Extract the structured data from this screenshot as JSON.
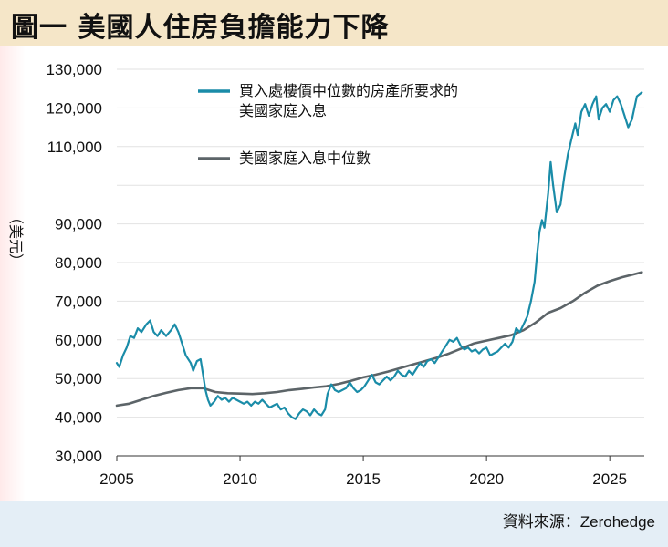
{
  "title": "圖一 美國人住房負擔能力下降",
  "source": "資料來源：Zerohedge",
  "colors": {
    "header_bg": "#f5e6c8",
    "footer_bg": "#e4eef6",
    "required_income": "#1a8ca8",
    "median_income": "#5c6468",
    "grid": "#e2e2e2"
  },
  "chart_data": {
    "type": "line",
    "ylabel": "（美元）",
    "ylim": [
      30000,
      130000
    ],
    "xlim": [
      2005,
      2026.4
    ],
    "yticks": [
      "30,000",
      "40,000",
      "50,000",
      "60,000",
      "70,000",
      "80,000",
      "90,000",
      "110,000",
      "120,000",
      "130,000"
    ],
    "ytick_values": [
      30000,
      40000,
      50000,
      60000,
      70000,
      80000,
      90000,
      110000,
      120000,
      130000
    ],
    "xticks": [
      "2005",
      "2010",
      "2015",
      "2020",
      "2025"
    ],
    "xtick_values": [
      2005,
      2010,
      2015,
      2020,
      2025
    ],
    "grid": true,
    "legend_position": "top-center",
    "series": [
      {
        "name": "買入處樓價中位數的房產所要求的美國家庭入息",
        "legend_lines": [
          "買入處樓價中位數的房產所要求的",
          "美國家庭入息"
        ],
        "color": "#1a8ca8",
        "points": [
          [
            2005.0,
            54000
          ],
          [
            2005.1,
            53000
          ],
          [
            2005.25,
            56000
          ],
          [
            2005.4,
            58000
          ],
          [
            2005.55,
            61000
          ],
          [
            2005.7,
            60500
          ],
          [
            2005.85,
            63000
          ],
          [
            2006.0,
            62000
          ],
          [
            2006.2,
            64000
          ],
          [
            2006.35,
            65000
          ],
          [
            2006.5,
            62000
          ],
          [
            2006.65,
            61000
          ],
          [
            2006.8,
            62500
          ],
          [
            2007.0,
            61000
          ],
          [
            2007.2,
            62500
          ],
          [
            2007.35,
            64000
          ],
          [
            2007.5,
            62000
          ],
          [
            2007.65,
            59000
          ],
          [
            2007.8,
            56000
          ],
          [
            2008.0,
            54000
          ],
          [
            2008.1,
            52000
          ],
          [
            2008.25,
            54500
          ],
          [
            2008.4,
            55000
          ],
          [
            2008.5,
            51000
          ],
          [
            2008.6,
            47000
          ],
          [
            2008.7,
            44500
          ],
          [
            2008.8,
            43000
          ],
          [
            2008.95,
            44000
          ],
          [
            2009.1,
            45500
          ],
          [
            2009.25,
            44500
          ],
          [
            2009.4,
            45000
          ],
          [
            2009.55,
            44000
          ],
          [
            2009.7,
            45000
          ],
          [
            2009.85,
            44500
          ],
          [
            2010.0,
            44000
          ],
          [
            2010.15,
            43500
          ],
          [
            2010.3,
            44000
          ],
          [
            2010.45,
            43000
          ],
          [
            2010.6,
            44000
          ],
          [
            2010.75,
            43500
          ],
          [
            2010.9,
            44500
          ],
          [
            2011.05,
            43500
          ],
          [
            2011.2,
            42500
          ],
          [
            2011.35,
            43000
          ],
          [
            2011.5,
            43500
          ],
          [
            2011.65,
            42000
          ],
          [
            2011.8,
            42500
          ],
          [
            2011.95,
            41000
          ],
          [
            2012.1,
            40000
          ],
          [
            2012.25,
            39500
          ],
          [
            2012.4,
            41000
          ],
          [
            2012.55,
            42000
          ],
          [
            2012.7,
            41500
          ],
          [
            2012.85,
            40500
          ],
          [
            2013.0,
            42000
          ],
          [
            2013.15,
            41000
          ],
          [
            2013.3,
            40500
          ],
          [
            2013.45,
            42000
          ],
          [
            2013.55,
            46000
          ],
          [
            2013.7,
            48500
          ],
          [
            2013.85,
            47000
          ],
          [
            2014.0,
            46500
          ],
          [
            2014.15,
            47000
          ],
          [
            2014.3,
            47500
          ],
          [
            2014.45,
            49000
          ],
          [
            2014.6,
            47500
          ],
          [
            2014.75,
            46500
          ],
          [
            2014.9,
            47000
          ],
          [
            2015.05,
            48000
          ],
          [
            2015.2,
            49500
          ],
          [
            2015.35,
            51000
          ],
          [
            2015.5,
            49000
          ],
          [
            2015.65,
            48500
          ],
          [
            2015.8,
            49500
          ],
          [
            2015.95,
            50500
          ],
          [
            2016.1,
            49500
          ],
          [
            2016.25,
            50500
          ],
          [
            2016.4,
            52000
          ],
          [
            2016.55,
            51000
          ],
          [
            2016.7,
            50500
          ],
          [
            2016.85,
            52000
          ],
          [
            2017.0,
            51000
          ],
          [
            2017.15,
            52500
          ],
          [
            2017.3,
            54000
          ],
          [
            2017.45,
            53000
          ],
          [
            2017.6,
            54500
          ],
          [
            2017.75,
            55000
          ],
          [
            2017.9,
            54000
          ],
          [
            2018.05,
            55500
          ],
          [
            2018.2,
            57000
          ],
          [
            2018.35,
            58500
          ],
          [
            2018.5,
            60000
          ],
          [
            2018.65,
            59500
          ],
          [
            2018.8,
            60500
          ],
          [
            2018.95,
            58500
          ],
          [
            2019.1,
            57500
          ],
          [
            2019.25,
            58000
          ],
          [
            2019.4,
            57000
          ],
          [
            2019.55,
            57500
          ],
          [
            2019.7,
            56500
          ],
          [
            2019.85,
            57500
          ],
          [
            2020.0,
            58000
          ],
          [
            2020.15,
            56000
          ],
          [
            2020.3,
            56500
          ],
          [
            2020.45,
            57000
          ],
          [
            2020.6,
            58000
          ],
          [
            2020.75,
            59000
          ],
          [
            2020.9,
            58000
          ],
          [
            2021.05,
            59500
          ],
          [
            2021.2,
            63000
          ],
          [
            2021.35,
            62000
          ],
          [
            2021.5,
            64000
          ],
          [
            2021.65,
            66000
          ],
          [
            2021.8,
            70000
          ],
          [
            2021.95,
            75000
          ],
          [
            2022.05,
            82000
          ],
          [
            2022.15,
            88000
          ],
          [
            2022.25,
            91000
          ],
          [
            2022.35,
            89000
          ],
          [
            2022.5,
            98000
          ],
          [
            2022.6,
            106000
          ],
          [
            2022.7,
            100000
          ],
          [
            2022.85,
            93000
          ],
          [
            2023.0,
            95000
          ],
          [
            2023.15,
            102000
          ],
          [
            2023.3,
            108000
          ],
          [
            2023.45,
            112000
          ],
          [
            2023.6,
            116000
          ],
          [
            2023.7,
            113000
          ],
          [
            2023.85,
            119000
          ],
          [
            2024.0,
            121000
          ],
          [
            2024.15,
            118000
          ],
          [
            2024.3,
            121000
          ],
          [
            2024.45,
            123000
          ],
          [
            2024.55,
            117000
          ],
          [
            2024.7,
            120000
          ],
          [
            2024.85,
            121000
          ],
          [
            2025.0,
            119000
          ],
          [
            2025.15,
            122000
          ],
          [
            2025.3,
            123000
          ],
          [
            2025.45,
            121000
          ],
          [
            2025.6,
            118000
          ],
          [
            2025.75,
            115000
          ],
          [
            2025.9,
            117000
          ],
          [
            2026.1,
            123000
          ],
          [
            2026.3,
            124000
          ]
        ]
      },
      {
        "name": "美國家庭入息中位數",
        "legend_lines": [
          "美國家庭入息中位數"
        ],
        "color": "#5c6468",
        "points": [
          [
            2005.0,
            43000
          ],
          [
            2005.5,
            43500
          ],
          [
            2006.0,
            44500
          ],
          [
            2006.5,
            45500
          ],
          [
            2007.0,
            46300
          ],
          [
            2007.5,
            47000
          ],
          [
            2008.0,
            47500
          ],
          [
            2008.5,
            47500
          ],
          [
            2009.0,
            46500
          ],
          [
            2009.5,
            46200
          ],
          [
            2010.0,
            46100
          ],
          [
            2010.5,
            46000
          ],
          [
            2011.0,
            46200
          ],
          [
            2011.5,
            46500
          ],
          [
            2012.0,
            47000
          ],
          [
            2012.5,
            47300
          ],
          [
            2013.0,
            47700
          ],
          [
            2013.5,
            48000
          ],
          [
            2014.0,
            48600
          ],
          [
            2014.5,
            49400
          ],
          [
            2015.0,
            50300
          ],
          [
            2015.5,
            51000
          ],
          [
            2016.0,
            51800
          ],
          [
            2016.5,
            52700
          ],
          [
            2017.0,
            53600
          ],
          [
            2017.5,
            54500
          ],
          [
            2018.0,
            55400
          ],
          [
            2018.5,
            56500
          ],
          [
            2019.0,
            57800
          ],
          [
            2019.5,
            59100
          ],
          [
            2020.0,
            59800
          ],
          [
            2020.5,
            60500
          ],
          [
            2021.0,
            61200
          ],
          [
            2021.5,
            62500
          ],
          [
            2022.0,
            64500
          ],
          [
            2022.5,
            67000
          ],
          [
            2023.0,
            68200
          ],
          [
            2023.5,
            70000
          ],
          [
            2024.0,
            72200
          ],
          [
            2024.5,
            74000
          ],
          [
            2025.0,
            75200
          ],
          [
            2025.5,
            76200
          ],
          [
            2026.0,
            77000
          ],
          [
            2026.3,
            77500
          ]
        ]
      }
    ]
  }
}
